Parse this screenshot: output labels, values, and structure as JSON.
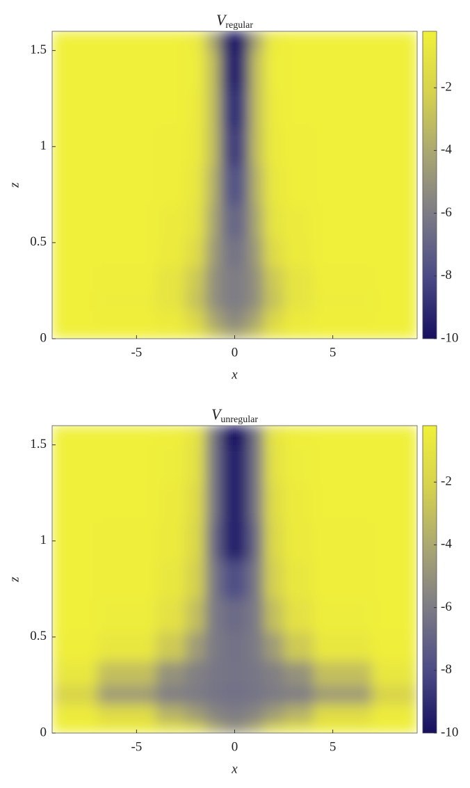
{
  "chart_data": [
    {
      "type": "heatmap",
      "title_symbol": "V",
      "title_subscript": "regular",
      "x_label": "x",
      "y_label": "z",
      "x": [
        -9,
        -5,
        -3,
        -2,
        -1,
        -0.5,
        0,
        0.5,
        1,
        2,
        3,
        5,
        9
      ],
      "y": [
        0,
        0.1,
        0.2,
        0.3,
        0.45,
        0.6,
        0.8,
        1.0,
        1.2,
        1.4,
        1.6
      ],
      "z": [
        [
          -0.2,
          -0.2,
          -0.3,
          -0.8,
          -2.5,
          -3.5,
          -4,
          -3.5,
          -2.5,
          -0.8,
          -0.3,
          -0.2,
          -0.2
        ],
        [
          -0.2,
          -0.3,
          -0.6,
          -1.8,
          -4,
          -5,
          -5.5,
          -5,
          -4,
          -1.8,
          -0.6,
          -0.3,
          -0.2
        ],
        [
          -0.2,
          -0.4,
          -1,
          -2.8,
          -5,
          -5.8,
          -6,
          -5.8,
          -5,
          -2.8,
          -1,
          -0.4,
          -0.2
        ],
        [
          -0.2,
          -0.3,
          -1,
          -2.5,
          -5,
          -5.8,
          -6,
          -5.8,
          -5,
          -2.5,
          -1,
          -0.3,
          -0.2
        ],
        [
          -0.2,
          -0.2,
          -0.6,
          -1.5,
          -4.5,
          -6,
          -6.5,
          -6,
          -4.5,
          -1.5,
          -0.6,
          -0.2,
          -0.2
        ],
        [
          -0.2,
          -0.2,
          -0.5,
          -1,
          -4,
          -6.5,
          -7,
          -6.5,
          -4,
          -1,
          -0.5,
          -0.2,
          -0.2
        ],
        [
          -0.2,
          -0.2,
          -0.3,
          -0.8,
          -3.5,
          -7,
          -8,
          -7,
          -3.5,
          -0.8,
          -0.3,
          -0.2,
          -0.2
        ],
        [
          -0.2,
          -0.2,
          -0.3,
          -0.6,
          -3,
          -7.5,
          -9,
          -7.5,
          -3,
          -0.6,
          -0.3,
          -0.2,
          -0.2
        ],
        [
          -0.2,
          -0.2,
          -0.2,
          -0.5,
          -3,
          -8,
          -9.5,
          -8,
          -3,
          -0.5,
          -0.2,
          -0.2,
          -0.2
        ],
        [
          -0.2,
          -0.2,
          -0.2,
          -0.4,
          -3,
          -8.5,
          -10,
          -8.5,
          -3,
          -0.4,
          -0.2,
          -0.2,
          -0.2
        ],
        [
          -0.2,
          -0.2,
          -0.2,
          -0.5,
          -4,
          -9,
          -10,
          -9,
          -4,
          -0.5,
          -0.2,
          -0.2,
          -0.2
        ]
      ],
      "xlim": [
        -9.3,
        9.3
      ],
      "xticks": [
        -5,
        0,
        5
      ],
      "ylim": [
        0,
        1.6
      ],
      "yticks": [
        0,
        0.5,
        1,
        1.5
      ],
      "clim": [
        -10,
        -0.2
      ],
      "cticks": [
        -10,
        -8,
        -6,
        -4,
        -2
      ],
      "colormap": [
        "#16105e",
        "#4b4a86",
        "#7b7a86",
        "#a9a672",
        "#d6d24e",
        "#f0f03a"
      ]
    },
    {
      "type": "heatmap",
      "title_symbol": "V",
      "title_subscript": "unregular",
      "x_label": "x",
      "y_label": "z",
      "x": [
        -9,
        -5,
        -3,
        -2,
        -1,
        -0.5,
        0,
        0.5,
        1,
        2,
        3,
        5,
        9
      ],
      "y": [
        0,
        0.1,
        0.2,
        0.3,
        0.45,
        0.6,
        0.8,
        1.0,
        1.2,
        1.4,
        1.6
      ],
      "z": [
        [
          -0.2,
          -0.3,
          -0.8,
          -1.5,
          -3.5,
          -4.5,
          -5,
          -4.5,
          -3.5,
          -1.5,
          -0.8,
          -0.3,
          -0.2
        ],
        [
          -0.5,
          -1.5,
          -3.5,
          -4.5,
          -5.5,
          -5.8,
          -6,
          -5.8,
          -5.5,
          -4.5,
          -3.5,
          -1.5,
          -0.5
        ],
        [
          -2,
          -4.5,
          -5.8,
          -6,
          -6.3,
          -6.4,
          -6.5,
          -6.4,
          -6.3,
          -6,
          -5.8,
          -4.5,
          -2
        ],
        [
          -0.8,
          -3,
          -5,
          -5.8,
          -6.2,
          -6.3,
          -6.4,
          -6.3,
          -6.2,
          -5.8,
          -5,
          -3,
          -0.8
        ],
        [
          -0.3,
          -0.8,
          -2.5,
          -4.5,
          -6,
          -6.3,
          -6.5,
          -6.3,
          -6,
          -4.5,
          -2.5,
          -0.8,
          -0.3
        ],
        [
          -0.2,
          -0.4,
          -1.2,
          -3,
          -6,
          -6.5,
          -6.8,
          -6.5,
          -6,
          -3,
          -1.2,
          -0.4,
          -0.2
        ],
        [
          -0.2,
          -0.3,
          -0.8,
          -2.2,
          -6,
          -7.5,
          -8,
          -7.5,
          -6,
          -2.2,
          -0.8,
          -0.3,
          -0.2
        ],
        [
          -0.2,
          -0.3,
          -0.6,
          -1.8,
          -6.5,
          -9,
          -9.5,
          -9,
          -6.5,
          -1.8,
          -0.6,
          -0.3,
          -0.2
        ],
        [
          -0.2,
          -0.2,
          -0.5,
          -1.5,
          -6,
          -9,
          -9.5,
          -9,
          -6,
          -1.5,
          -0.5,
          -0.2,
          -0.2
        ],
        [
          -0.2,
          -0.2,
          -0.4,
          -1.2,
          -6,
          -9,
          -9.5,
          -9,
          -6,
          -1.2,
          -0.4,
          -0.2,
          -0.2
        ],
        [
          -0.2,
          -0.2,
          -0.3,
          -1,
          -6,
          -9.5,
          -10,
          -9.5,
          -6,
          -1,
          -0.3,
          -0.2,
          -0.2
        ]
      ],
      "xlim": [
        -9.3,
        9.3
      ],
      "xticks": [
        -5,
        0,
        5
      ],
      "ylim": [
        0,
        1.6
      ],
      "yticks": [
        0,
        0.5,
        1,
        1.5
      ],
      "clim": [
        -10,
        -0.2
      ],
      "cticks": [
        -10,
        -8,
        -6,
        -4,
        -2
      ],
      "colormap": [
        "#16105e",
        "#4b4a86",
        "#7b7a86",
        "#a9a672",
        "#d6d24e",
        "#f0f03a"
      ]
    }
  ]
}
